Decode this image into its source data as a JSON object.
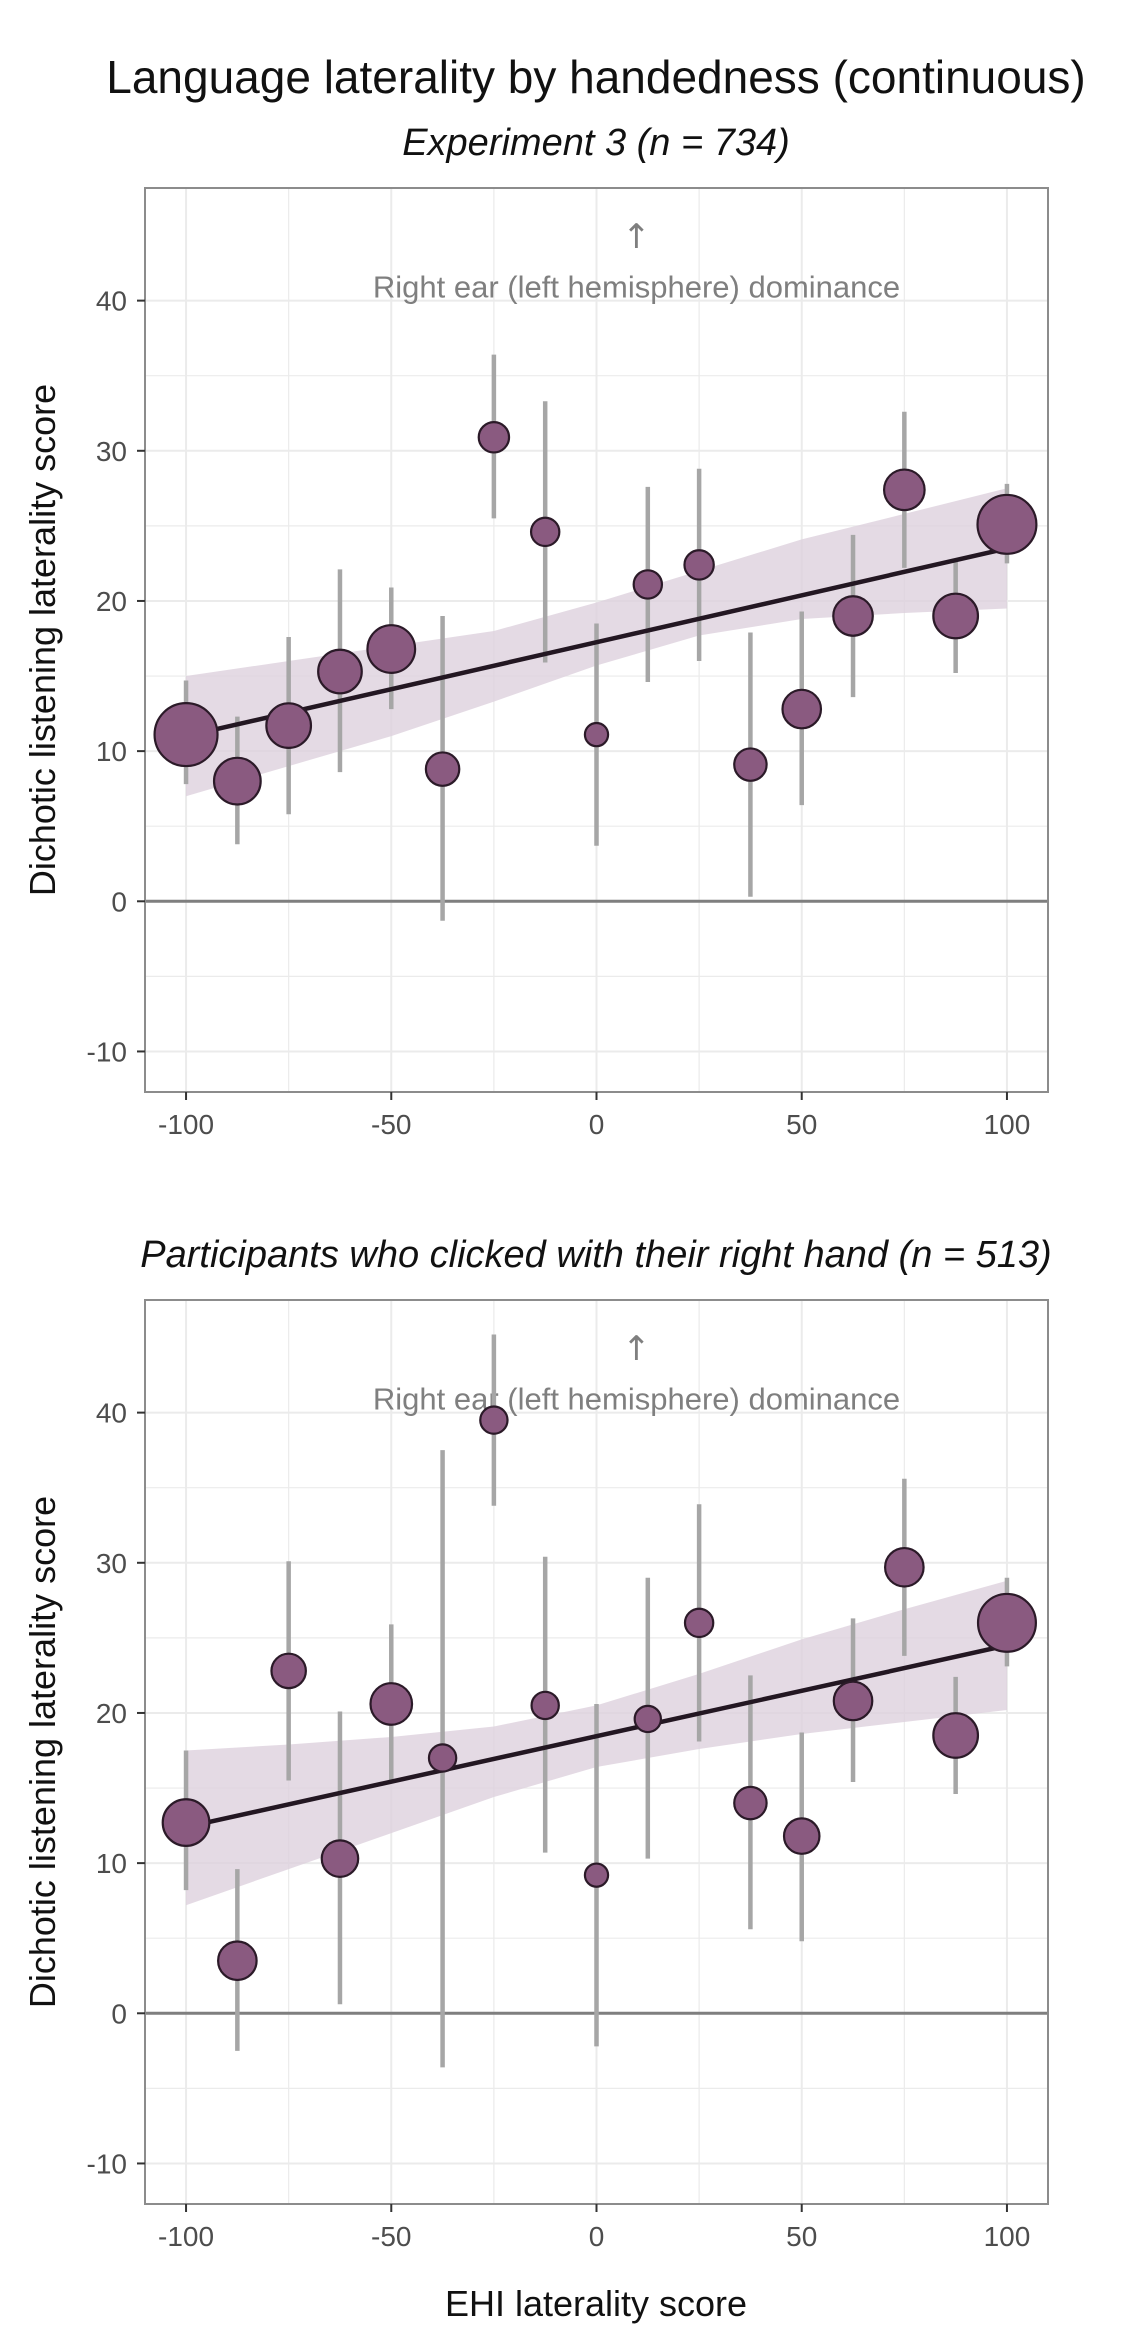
{
  "title": "Language laterality by handedness (continuous)",
  "x_axis_label": "EHI laterality score",
  "colors": {
    "point_fill": "#8a5a80",
    "point_stroke": "#2b1a28",
    "ribbon": "#ddd1dd",
    "fit_line": "#231722",
    "error_bar": "#a6a6a6",
    "zero_line": "#7f7f7f",
    "grid": "#ebebeb",
    "panel_border": "#8c8c8c"
  },
  "chart_data": [
    {
      "type": "scatter",
      "subtitle": "Experiment 3 (n = 734)",
      "ylabel": "Dichotic listening laterality score",
      "annotation_arrow": "↑",
      "annotation": "Right ear (left hemisphere) dominance",
      "xlim": [
        -110,
        110
      ],
      "ylim": [
        -12.7,
        47.5
      ],
      "x_ticks": [
        -100,
        -50,
        0,
        50,
        100
      ],
      "x_tick_labels": [
        "-100",
        "-50",
        "0",
        "50",
        "100"
      ],
      "y_ticks": [
        -10,
        0,
        10,
        20,
        30,
        40
      ],
      "y_tick_labels": [
        "-10",
        "0",
        "10",
        "20",
        "30",
        "40"
      ],
      "grid": true,
      "fit_line": {
        "x": [
          -100,
          100
        ],
        "y": [
          11.0,
          23.5
        ]
      },
      "confidence_band": {
        "x": [
          -100,
          -75,
          -50,
          -25,
          0,
          25,
          50,
          75,
          100
        ],
        "lower": [
          7.0,
          9.0,
          11.0,
          13.3,
          15.7,
          17.7,
          18.8,
          19.2,
          19.5
        ],
        "upper": [
          15.0,
          16.0,
          17.0,
          18.0,
          19.9,
          22.0,
          24.1,
          25.8,
          27.5
        ]
      },
      "points": [
        {
          "x": -100,
          "y": 11.1,
          "low": 7.8,
          "high": 14.7,
          "size": 4.8
        },
        {
          "x": -87.5,
          "y": 8.0,
          "low": 3.8,
          "high": 12.3,
          "size": 3.2
        },
        {
          "x": -75,
          "y": 11.7,
          "low": 5.8,
          "high": 17.6,
          "size": 3.0
        },
        {
          "x": -62.5,
          "y": 15.3,
          "low": 8.6,
          "high": 22.1,
          "size": 2.9
        },
        {
          "x": -50,
          "y": 16.8,
          "low": 12.8,
          "high": 20.9,
          "size": 3.3
        },
        {
          "x": -37.5,
          "y": 8.8,
          "low": -1.3,
          "high": 19.0,
          "size": 1.9
        },
        {
          "x": -25,
          "y": 30.9,
          "low": 25.5,
          "high": 36.4,
          "size": 1.6
        },
        {
          "x": -12.5,
          "y": 24.6,
          "low": 15.9,
          "high": 33.3,
          "size": 1.4
        },
        {
          "x": 0,
          "y": 11.1,
          "low": 3.7,
          "high": 18.5,
          "size": 0.9
        },
        {
          "x": 12.5,
          "y": 21.1,
          "low": 14.6,
          "high": 27.6,
          "size": 1.4
        },
        {
          "x": 25,
          "y": 22.4,
          "low": 16.0,
          "high": 28.8,
          "size": 1.5
        },
        {
          "x": 37.5,
          "y": 9.1,
          "low": 0.3,
          "high": 17.9,
          "size": 1.8
        },
        {
          "x": 50,
          "y": 12.8,
          "low": 6.4,
          "high": 19.3,
          "size": 2.4
        },
        {
          "x": 62.5,
          "y": 19.0,
          "low": 13.6,
          "high": 24.4,
          "size": 2.5
        },
        {
          "x": 75,
          "y": 27.4,
          "low": 22.2,
          "high": 32.6,
          "size": 2.6
        },
        {
          "x": 87.5,
          "y": 19.0,
          "low": 15.2,
          "high": 22.8,
          "size": 3.0
        },
        {
          "x": 100,
          "y": 25.1,
          "low": 22.5,
          "high": 27.8,
          "size": 4.4
        }
      ]
    },
    {
      "type": "scatter",
      "subtitle": "Participants who clicked with their right hand (n = 513)",
      "ylabel": "Dichotic listening laterality score",
      "annotation_arrow": "↑",
      "annotation": "Right ear (left hemisphere) dominance",
      "xlim": [
        -110,
        110
      ],
      "ylim": [
        -12.7,
        47.5
      ],
      "x_ticks": [
        -100,
        -50,
        0,
        50,
        100
      ],
      "x_tick_labels": [
        "-100",
        "-50",
        "0",
        "50",
        "100"
      ],
      "y_ticks": [
        -10,
        0,
        10,
        20,
        30,
        40
      ],
      "y_tick_labels": [
        "-10",
        "0",
        "10",
        "20",
        "30",
        "40"
      ],
      "grid": true,
      "fit_line": {
        "x": [
          -100,
          100
        ],
        "y": [
          12.4,
          24.5
        ]
      },
      "confidence_band": {
        "x": [
          -100,
          -75,
          -50,
          -25,
          0,
          25,
          50,
          75,
          100
        ],
        "lower": [
          7.2,
          9.6,
          12.0,
          14.4,
          16.4,
          17.6,
          18.6,
          19.4,
          20.2
        ],
        "upper": [
          17.5,
          17.9,
          18.4,
          19.1,
          20.5,
          22.6,
          24.9,
          26.9,
          28.8
        ]
      },
      "points": [
        {
          "x": -100,
          "y": 12.7,
          "low": 8.2,
          "high": 17.5,
          "size": 3.2
        },
        {
          "x": -87.5,
          "y": 3.5,
          "low": -2.5,
          "high": 9.6,
          "size": 2.4
        },
        {
          "x": -75,
          "y": 22.8,
          "low": 15.5,
          "high": 30.1,
          "size": 2.0
        },
        {
          "x": -62.5,
          "y": 10.3,
          "low": 0.6,
          "high": 20.1,
          "size": 2.2
        },
        {
          "x": -50,
          "y": 20.6,
          "low": 15.4,
          "high": 25.9,
          "size": 2.7
        },
        {
          "x": -37.5,
          "y": 17.0,
          "low": -3.6,
          "high": 37.5,
          "size": 1.3
        },
        {
          "x": -25,
          "y": 39.5,
          "low": 33.8,
          "high": 45.2,
          "size": 1.3
        },
        {
          "x": -12.5,
          "y": 20.5,
          "low": 10.7,
          "high": 30.4,
          "size": 1.3
        },
        {
          "x": 0,
          "y": 9.2,
          "low": -2.2,
          "high": 20.6,
          "size": 0.9
        },
        {
          "x": 12.5,
          "y": 19.6,
          "low": 10.3,
          "high": 29.0,
          "size": 1.2
        },
        {
          "x": 25,
          "y": 26.0,
          "low": 18.1,
          "high": 33.9,
          "size": 1.4
        },
        {
          "x": 37.5,
          "y": 14.0,
          "low": 5.6,
          "high": 22.5,
          "size": 1.8
        },
        {
          "x": 50,
          "y": 11.8,
          "low": 4.8,
          "high": 18.7,
          "size": 2.1
        },
        {
          "x": 62.5,
          "y": 20.8,
          "low": 15.4,
          "high": 26.3,
          "size": 2.4
        },
        {
          "x": 75,
          "y": 29.7,
          "low": 23.8,
          "high": 35.6,
          "size": 2.4
        },
        {
          "x": 87.5,
          "y": 18.5,
          "low": 14.6,
          "high": 22.4,
          "size": 3.0
        },
        {
          "x": 100,
          "y": 26.0,
          "low": 23.1,
          "high": 29.0,
          "size": 4.3
        }
      ]
    }
  ]
}
